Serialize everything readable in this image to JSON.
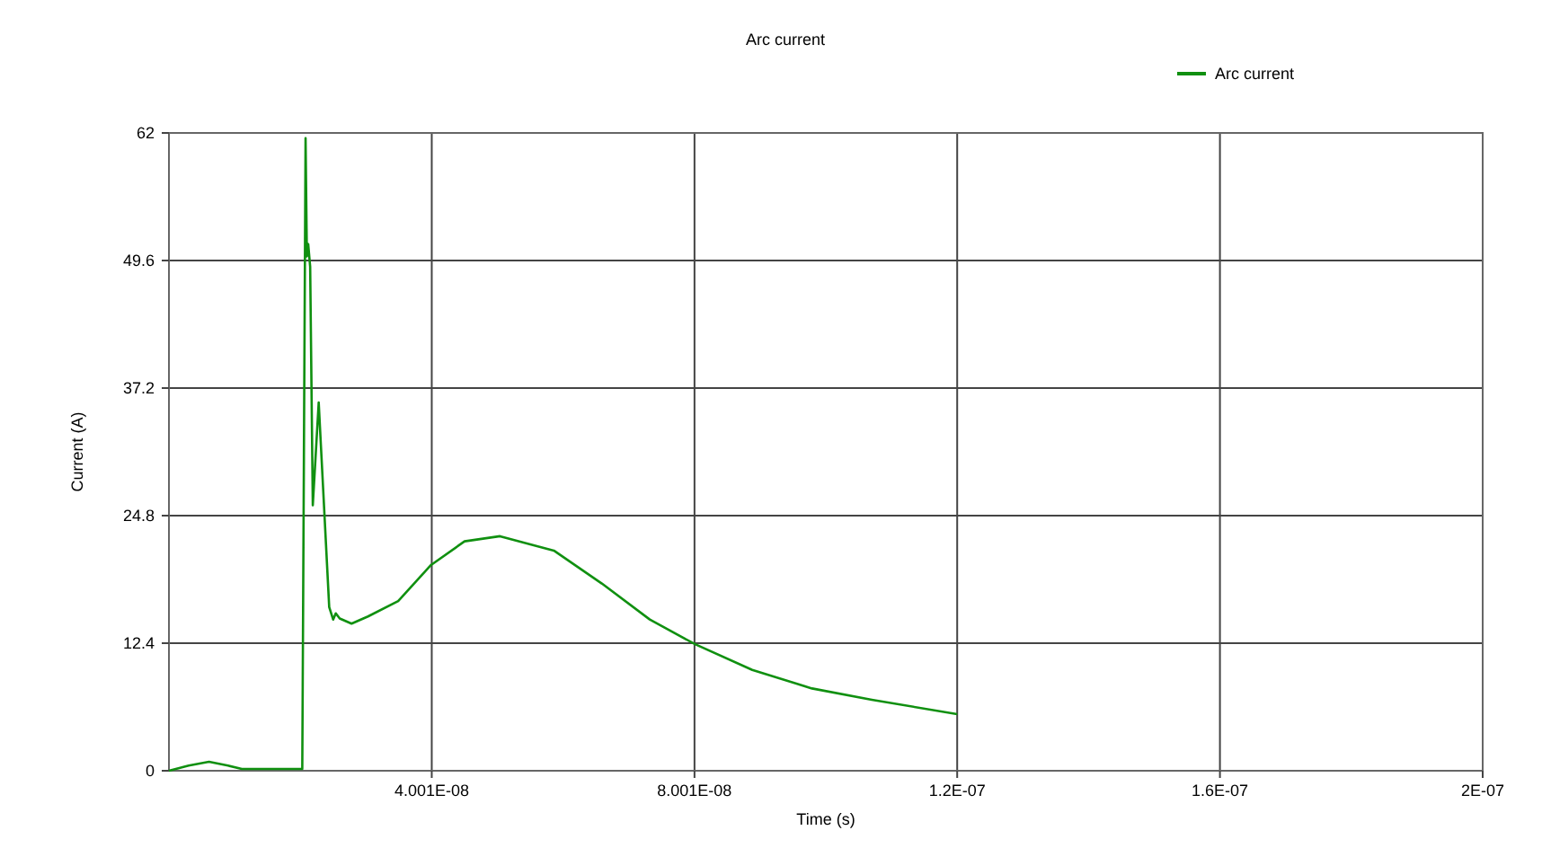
{
  "chart_data": {
    "type": "line",
    "title": "Arc current",
    "xlabel": "Time (s)",
    "ylabel": "Current (A)",
    "xlim": [
      0,
      2e-07
    ],
    "ylim": [
      0,
      62
    ],
    "xticks": [
      {
        "value": 4.001e-08,
        "label": "4.001E-08"
      },
      {
        "value": 8.001e-08,
        "label": "8.001E-08"
      },
      {
        "value": 1.2e-07,
        "label": "1.2E-07"
      },
      {
        "value": 1.6e-07,
        "label": "1.6E-07"
      },
      {
        "value": 2e-07,
        "label": "2E-07"
      }
    ],
    "yticks": [
      0,
      12.4,
      24.8,
      37.2,
      49.6,
      62
    ],
    "grid": true,
    "legend": "top right",
    "marker": "none",
    "line_style": "solid",
    "series": [
      {
        "name": "Arc current",
        "color": "#109010",
        "x": [
          0,
          3e-09,
          6.1e-09,
          9e-09,
          1.11e-08,
          2.03e-08,
          2.08e-08,
          2.1e-08,
          2.12e-08,
          2.15e-08,
          2.19e-08,
          2.28e-08,
          2.44e-08,
          2.5e-08,
          2.54e-08,
          2.6e-08,
          2.78e-08,
          3.03e-08,
          3.49e-08,
          3.99e-08,
          4.5e-08,
          5.04e-08,
          5.86e-08,
          6.59e-08,
          7.32e-08,
          8.01e-08,
          8.88e-08,
          9.79e-08,
          1.07e-07,
          1.2e-07
        ],
        "values": [
          0,
          0.5,
          0.87,
          0.5,
          0.17,
          0.17,
          61.5,
          50,
          51.2,
          49,
          25.8,
          35.8,
          15.9,
          14.7,
          15.3,
          14.8,
          14.3,
          15,
          16.5,
          20,
          22.3,
          22.8,
          21.4,
          18.2,
          14.7,
          12.3,
          9.8,
          8,
          6.9,
          5.5
        ]
      }
    ]
  }
}
